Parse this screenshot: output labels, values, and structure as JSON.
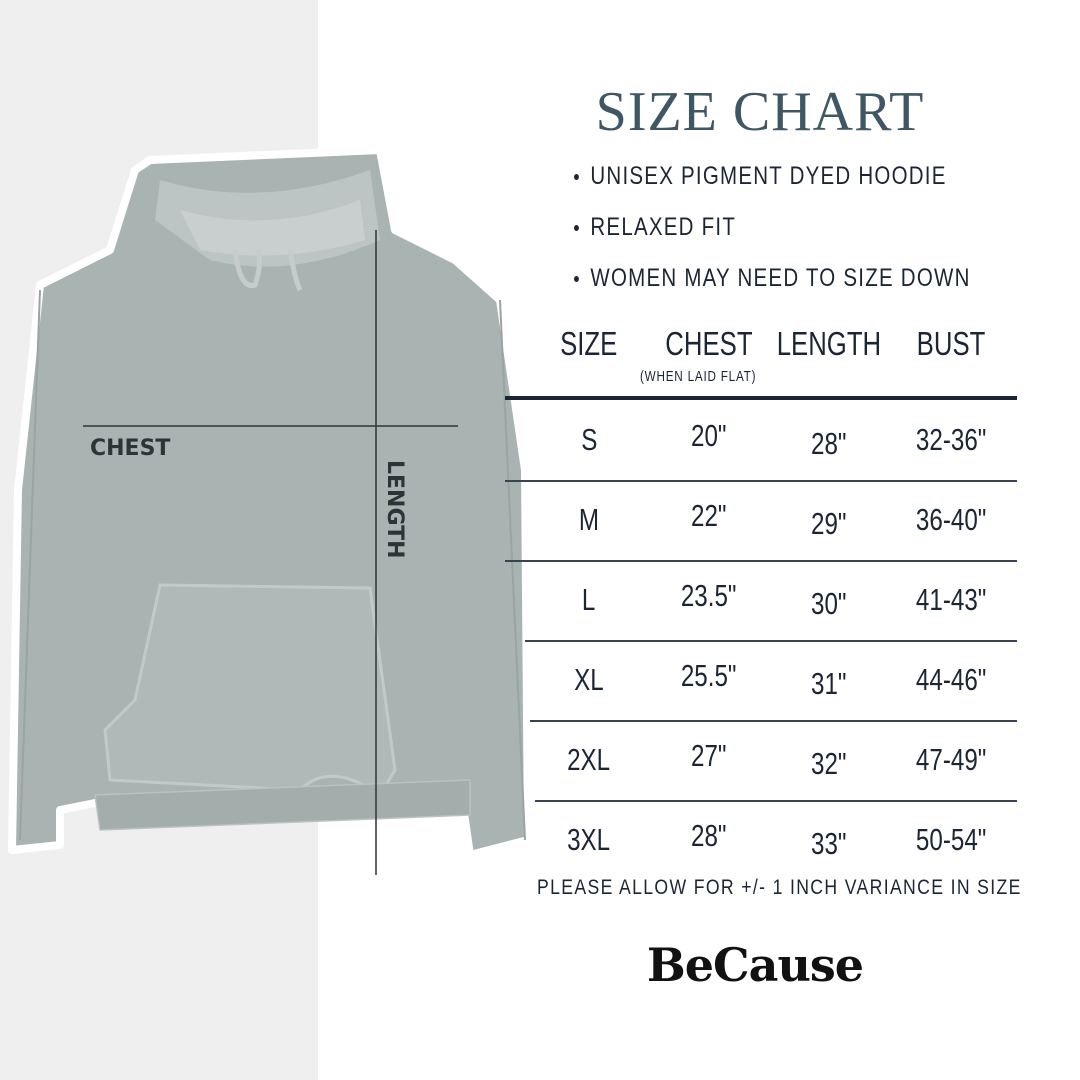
{
  "title": "SIZE CHART",
  "bullets": [
    "UNISEX PIGMENT DYED HOODIE",
    "RELAXED FIT",
    "WOMEN MAY NEED TO SIZE DOWN"
  ],
  "diagram": {
    "chest_label": "CHEST",
    "length_label": "LENGTH"
  },
  "table": {
    "headers": [
      "SIZE",
      "CHEST",
      "LENGTH",
      "BUST"
    ],
    "chest_note": "(WHEN LAID FLAT)",
    "rows": [
      [
        "S",
        "20\"",
        "28\"",
        "32-36\""
      ],
      [
        "M",
        "22\"",
        "29\"",
        "36-40\""
      ],
      [
        "L",
        "23.5\"",
        "30\"",
        "41-43\""
      ],
      [
        "XL",
        "25.5\"",
        "31\"",
        "44-46\""
      ],
      [
        "2XL",
        "27\"",
        "32\"",
        "47-49\""
      ],
      [
        "3XL",
        "28\"",
        "33\"",
        "50-54\""
      ]
    ]
  },
  "note": "PLEASE ALLOW FOR +/- 1 INCH VARIANCE IN SIZE",
  "brand": "BeCause",
  "colors": {
    "title": "#3f5765",
    "text": "#1c2533",
    "hoodie": "#a9b3b2",
    "panel": "#efefef"
  }
}
